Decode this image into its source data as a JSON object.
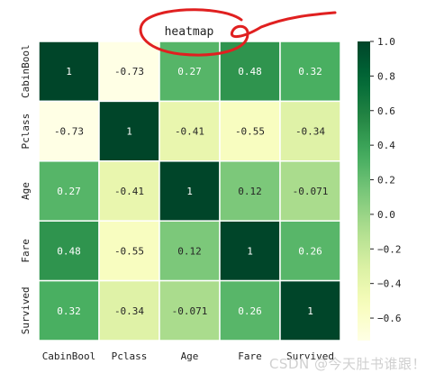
{
  "chart_data": {
    "type": "heatmap",
    "title": "heatmap",
    "x_labels": [
      "CabinBool",
      "Pclass",
      "Age",
      "Fare",
      "Survived"
    ],
    "y_labels": [
      "CabinBool",
      "Pclass",
      "Age",
      "Fare",
      "Survived"
    ],
    "cell_labels": [
      [
        "1",
        "-0.73",
        "0.27",
        "0.48",
        "0.32"
      ],
      [
        "-0.73",
        "1",
        "-0.41",
        "-0.55",
        "-0.34"
      ],
      [
        "0.27",
        "-0.41",
        "1",
        "0.12",
        "-0.071"
      ],
      [
        "0.48",
        "-0.55",
        "0.12",
        "1",
        "0.26"
      ],
      [
        "0.32",
        "-0.34",
        "-0.071",
        "0.26",
        "1"
      ]
    ],
    "values": [
      [
        1.0,
        -0.73,
        0.27,
        0.48,
        0.32
      ],
      [
        -0.73,
        1.0,
        -0.41,
        -0.55,
        -0.34
      ],
      [
        0.27,
        -0.41,
        1.0,
        0.12,
        -0.071
      ],
      [
        0.48,
        -0.55,
        0.12,
        1.0,
        0.26
      ],
      [
        0.32,
        -0.34,
        -0.071,
        0.26,
        1.0
      ]
    ],
    "colormap": "YlGn",
    "vmin": -0.73,
    "vmax": 1.0,
    "colorbar_ticks": [
      "1.0",
      "0.8",
      "0.6",
      "0.4",
      "0.2",
      "0.0",
      "−0.2",
      "−0.4",
      "−0.6"
    ],
    "colorbar_tick_values": [
      1.0,
      0.8,
      0.6,
      0.4,
      0.2,
      0.0,
      -0.2,
      -0.4,
      -0.6
    ],
    "annotation_color": "#e02020"
  },
  "watermark": "CSDN @今天肚书谁跟！"
}
